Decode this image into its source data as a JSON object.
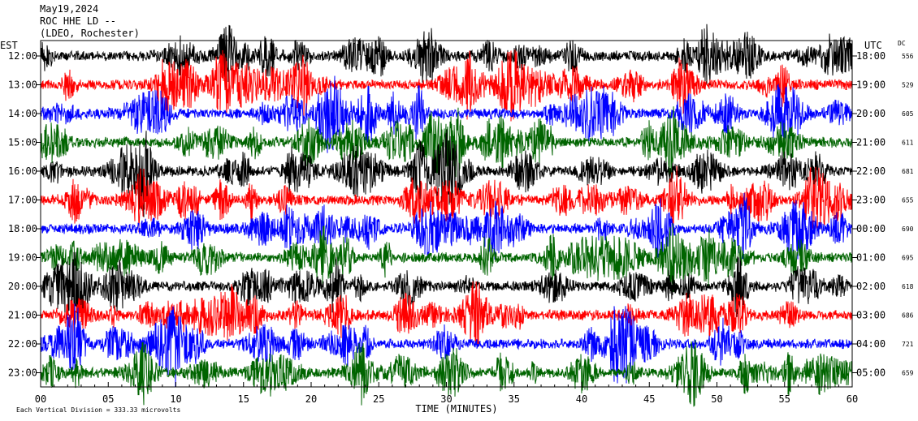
{
  "header": {
    "date": "May19,2024",
    "station": "ROC HHE LD --",
    "location": "(LDEO, Rochester)"
  },
  "chart_data": {
    "type": "line",
    "title": "",
    "xlabel": "TIME (MINUTES)",
    "left_axis_label": "EST",
    "right_axis_label": "UTC",
    "dc_label": "DC",
    "x_ticks": [
      "00",
      "05",
      "10",
      "15",
      "20",
      "25",
      "30",
      "35",
      "40",
      "45",
      "50",
      "55",
      "60"
    ],
    "xlim": [
      0,
      60
    ],
    "scale_note": "Each Vertical Division =  333.33 microvolts",
    "trace_colors": [
      "#000000",
      "#ff0000",
      "#0000ff",
      "#006400"
    ],
    "rows": [
      {
        "est": "12:00",
        "utc": "18:00",
        "dc": "556"
      },
      {
        "est": "13:00",
        "utc": "19:00",
        "dc": "529"
      },
      {
        "est": "14:00",
        "utc": "20:00",
        "dc": "605"
      },
      {
        "est": "15:00",
        "utc": "21:00",
        "dc": "611"
      },
      {
        "est": "16:00",
        "utc": "22:00",
        "dc": "681"
      },
      {
        "est": "17:00",
        "utc": "23:00",
        "dc": "655"
      },
      {
        "est": "18:00",
        "utc": "00:00",
        "dc": "690"
      },
      {
        "est": "19:00",
        "utc": "01:00",
        "dc": "695"
      },
      {
        "est": "20:00",
        "utc": "02:00",
        "dc": "618"
      },
      {
        "est": "21:00",
        "utc": "03:00",
        "dc": "686"
      },
      {
        "est": "22:00",
        "utc": "04:00",
        "dc": "721"
      },
      {
        "est": "23:00",
        "utc": "05:00",
        "dc": "659"
      }
    ]
  }
}
